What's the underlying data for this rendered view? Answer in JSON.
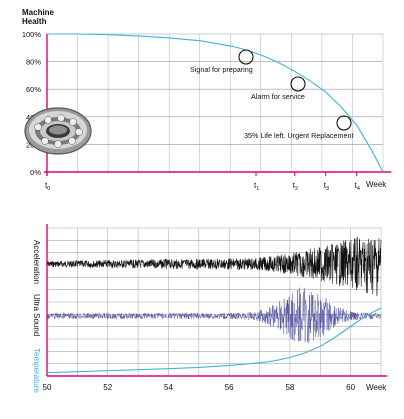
{
  "colors": {
    "magenta": "#e0007a",
    "health_curve": "#43b3d9",
    "grid": "#999999",
    "accel": "#111111",
    "ultrasound": "#44449a",
    "temperature": "#43b3d9"
  },
  "chart_data": [
    {
      "type": "line",
      "title": "Machine Health",
      "ylabel_line1": "Machine",
      "ylabel_line2": "Health",
      "xlabel": "Week",
      "y_ticks": [
        "100%",
        "80%",
        "60%",
        "40%",
        "20%",
        "0%"
      ],
      "ylim": [
        0,
        100
      ],
      "x_ticks": [
        {
          "main": "t",
          "sub": "0",
          "x": 0
        },
        {
          "main": "t",
          "sub": "1",
          "x": 6.75
        },
        {
          "main": "t",
          "sub": "2",
          "x": 8.0
        },
        {
          "main": "t",
          "sub": "3",
          "x": 9.0
        },
        {
          "main": "t",
          "sub": "4",
          "x": 10.0
        }
      ],
      "xlim": [
        0,
        10.85
      ],
      "series": [
        {
          "x": [
            0,
            1,
            2,
            3,
            4,
            5,
            6,
            6.5,
            7,
            7.5,
            8,
            8.5,
            9,
            9.5,
            10,
            10.5,
            10.85
          ],
          "y": [
            100,
            100,
            99.5,
            98.5,
            97,
            95,
            91,
            88,
            84,
            79,
            73,
            66,
            58,
            47,
            34,
            15,
            0
          ]
        }
      ],
      "annotations": [
        {
          "text": "Signal for preparing",
          "x": 6.1,
          "y": 83
        },
        {
          "text": "Alarm for service",
          "x": 7.9,
          "y": 63
        },
        {
          "text": "35% Life left. Urgent Replacement",
          "x": 9.3,
          "y": 34
        }
      ],
      "grid": true
    },
    {
      "type": "line",
      "xlabel": "Week",
      "x_ticks": [
        "50",
        "52",
        "54",
        "56",
        "58",
        "60"
      ],
      "xlim": [
        50,
        61
      ],
      "series": [
        {
          "name": "Acceleration"
        },
        {
          "name": "Ultra Sound"
        },
        {
          "name": "Temperature",
          "x": [
            50,
            52,
            54,
            55,
            56,
            57,
            57.5,
            58,
            58.5,
            59,
            59.5,
            60,
            60.5,
            61
          ],
          "y": [
            0.02,
            0.05,
            0.08,
            0.1,
            0.13,
            0.17,
            0.2,
            0.25,
            0.32,
            0.42,
            0.56,
            0.72,
            0.88,
            1.0
          ]
        }
      ],
      "grid": true
    }
  ]
}
